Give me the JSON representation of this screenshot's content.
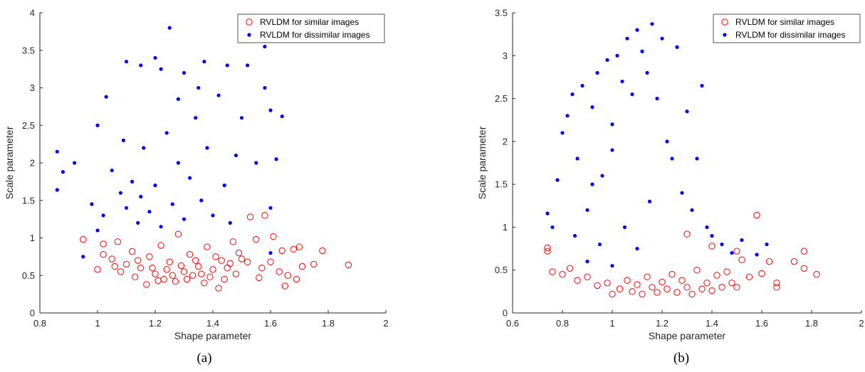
{
  "chart_data": [
    {
      "type": "scatter",
      "caption": "(a)",
      "xlabel": "Shape parameter",
      "ylabel": "Scale parameter",
      "xlim": [
        0.8,
        2
      ],
      "ylim": [
        0,
        4
      ],
      "xticks": [
        "0.8",
        "1",
        "1.2",
        "1.4",
        "1.6",
        "1.8",
        "2"
      ],
      "yticks": [
        "0",
        "0.5",
        "1",
        "1.5",
        "2",
        "2.5",
        "3",
        "3.5",
        "4"
      ],
      "grid": false,
      "legend_position": "top-right",
      "series": [
        {
          "name": "RVLDM for similar images",
          "marker": "open-circle",
          "color": "#ff0000",
          "points": [
            [
              0.95,
              0.98
            ],
            [
              1.0,
              0.58
            ],
            [
              1.02,
              0.78
            ],
            [
              1.05,
              0.72
            ],
            [
              1.07,
              0.95
            ],
            [
              1.08,
              0.55
            ],
            [
              1.1,
              0.65
            ],
            [
              1.12,
              0.82
            ],
            [
              1.13,
              0.48
            ],
            [
              1.15,
              0.6
            ],
            [
              1.17,
              0.38
            ],
            [
              1.18,
              0.75
            ],
            [
              1.2,
              0.52
            ],
            [
              1.22,
              0.9
            ],
            [
              1.23,
              0.45
            ],
            [
              1.25,
              0.68
            ],
            [
              1.27,
              0.42
            ],
            [
              1.28,
              1.05
            ],
            [
              1.3,
              0.55
            ],
            [
              1.32,
              0.78
            ],
            [
              1.33,
              0.5
            ],
            [
              1.35,
              0.62
            ],
            [
              1.37,
              0.4
            ],
            [
              1.38,
              0.88
            ],
            [
              1.4,
              0.58
            ],
            [
              1.42,
              0.33
            ],
            [
              1.43,
              0.7
            ],
            [
              1.45,
              0.6
            ],
            [
              1.47,
              0.95
            ],
            [
              1.48,
              0.52
            ],
            [
              1.5,
              0.72
            ],
            [
              1.52,
              0.68
            ],
            [
              1.53,
              1.28
            ],
            [
              1.55,
              0.98
            ],
            [
              1.57,
              0.6
            ],
            [
              1.58,
              1.3
            ],
            [
              1.6,
              0.68
            ],
            [
              1.61,
              1.02
            ],
            [
              1.64,
              0.83
            ],
            [
              1.65,
              0.36
            ],
            [
              1.66,
              0.5
            ],
            [
              1.68,
              0.85
            ],
            [
              1.7,
              0.88
            ],
            [
              1.71,
              0.62
            ],
            [
              1.75,
              0.65
            ],
            [
              1.78,
              0.83
            ],
            [
              1.87,
              0.64
            ],
            [
              1.02,
              0.92
            ],
            [
              1.06,
              0.62
            ],
            [
              1.14,
              0.7
            ],
            [
              1.19,
              0.6
            ],
            [
              1.21,
              0.43
            ],
            [
              1.24,
              0.58
            ],
            [
              1.26,
              0.5
            ],
            [
              1.29,
              0.63
            ],
            [
              1.31,
              0.45
            ],
            [
              1.34,
              0.7
            ],
            [
              1.36,
              0.52
            ],
            [
              1.39,
              0.48
            ],
            [
              1.41,
              0.75
            ],
            [
              1.44,
              0.45
            ],
            [
              1.46,
              0.66
            ],
            [
              1.49,
              0.8
            ],
            [
              1.56,
              0.47
            ],
            [
              1.63,
              0.55
            ],
            [
              1.69,
              0.45
            ]
          ]
        },
        {
          "name": "RVLDM for dissimilar images",
          "marker": "filled-dot",
          "color": "#0000ff",
          "points": [
            [
              0.86,
              2.15
            ],
            [
              0.86,
              1.64
            ],
            [
              0.88,
              1.88
            ],
            [
              0.92,
              2.0
            ],
            [
              0.95,
              0.75
            ],
            [
              1.0,
              2.5
            ],
            [
              1.03,
              2.88
            ],
            [
              1.1,
              3.35
            ],
            [
              1.15,
              3.3
            ],
            [
              1.2,
              3.4
            ],
            [
              1.22,
              3.25
            ],
            [
              1.25,
              3.8
            ],
            [
              1.3,
              3.2
            ],
            [
              1.37,
              3.35
            ],
            [
              1.45,
              3.3
            ],
            [
              1.52,
              3.3
            ],
            [
              1.58,
              3.55
            ],
            [
              1.58,
              3.0
            ],
            [
              1.6,
              2.7
            ],
            [
              1.64,
              2.62
            ],
            [
              1.62,
              2.05
            ],
            [
              1.6,
              1.4
            ],
            [
              1.6,
              0.8
            ],
            [
              1.55,
              2.0
            ],
            [
              1.5,
              2.6
            ],
            [
              1.48,
              2.1
            ],
            [
              1.05,
              1.9
            ],
            [
              1.08,
              1.6
            ],
            [
              1.1,
              1.4
            ],
            [
              1.12,
              1.75
            ],
            [
              1.14,
              1.2
            ],
            [
              1.15,
              1.55
            ],
            [
              1.16,
              2.2
            ],
            [
              1.18,
              1.35
            ],
            [
              1.2,
              1.7
            ],
            [
              1.22,
              1.15
            ],
            [
              1.24,
              2.4
            ],
            [
              1.26,
              1.45
            ],
            [
              1.28,
              2.0
            ],
            [
              1.3,
              1.25
            ],
            [
              1.32,
              1.8
            ],
            [
              1.34,
              2.6
            ],
            [
              1.36,
              1.5
            ],
            [
              1.38,
              2.2
            ],
            [
              1.4,
              1.3
            ],
            [
              1.42,
              2.9
            ],
            [
              1.44,
              1.7
            ],
            [
              1.46,
              1.2
            ],
            [
              1.35,
              3.0
            ],
            [
              1.28,
              2.85
            ],
            [
              1.02,
              1.3
            ],
            [
              0.98,
              1.45
            ],
            [
              1.0,
              1.1
            ],
            [
              1.09,
              2.3
            ]
          ]
        }
      ]
    },
    {
      "type": "scatter",
      "caption": "(b)",
      "xlabel": "Shape parameter",
      "ylabel": "Scale parameter",
      "xlim": [
        0.6,
        2
      ],
      "ylim": [
        0,
        3.5
      ],
      "xticks": [
        "0.6",
        "0.8",
        "1",
        "1.2",
        "1.4",
        "1.6",
        "1.8",
        "2"
      ],
      "yticks": [
        "0",
        "0.5",
        "1",
        "1.5",
        "2",
        "2.5",
        "3",
        "3.5"
      ],
      "grid": false,
      "legend_position": "top-right",
      "series": [
        {
          "name": "RVLDM for similar images",
          "marker": "open-circle",
          "color": "#ff0000",
          "points": [
            [
              0.74,
              0.76
            ],
            [
              0.74,
              0.72
            ],
            [
              0.76,
              0.48
            ],
            [
              0.8,
              0.45
            ],
            [
              0.83,
              0.52
            ],
            [
              0.86,
              0.38
            ],
            [
              0.9,
              0.42
            ],
            [
              0.94,
              0.32
            ],
            [
              0.98,
              0.35
            ],
            [
              1.0,
              0.22
            ],
            [
              1.03,
              0.28
            ],
            [
              1.06,
              0.38
            ],
            [
              1.08,
              0.25
            ],
            [
              1.1,
              0.33
            ],
            [
              1.12,
              0.22
            ],
            [
              1.14,
              0.42
            ],
            [
              1.16,
              0.3
            ],
            [
              1.18,
              0.24
            ],
            [
              1.2,
              0.36
            ],
            [
              1.22,
              0.28
            ],
            [
              1.24,
              0.45
            ],
            [
              1.26,
              0.24
            ],
            [
              1.28,
              0.38
            ],
            [
              1.3,
              0.3
            ],
            [
              1.32,
              0.22
            ],
            [
              1.34,
              0.5
            ],
            [
              1.36,
              0.28
            ],
            [
              1.38,
              0.35
            ],
            [
              1.4,
              0.26
            ],
            [
              1.42,
              0.44
            ],
            [
              1.44,
              0.3
            ],
            [
              1.46,
              0.48
            ],
            [
              1.48,
              0.35
            ],
            [
              1.5,
              0.3
            ],
            [
              1.52,
              0.62
            ],
            [
              1.55,
              0.42
            ],
            [
              1.58,
              1.14
            ],
            [
              1.6,
              0.46
            ],
            [
              1.63,
              0.6
            ],
            [
              1.66,
              0.35
            ],
            [
              1.66,
              0.3
            ],
            [
              1.73,
              0.6
            ],
            [
              1.77,
              0.72
            ],
            [
              1.77,
              0.52
            ],
            [
              1.82,
              0.45
            ],
            [
              1.3,
              0.92
            ],
            [
              1.4,
              0.78
            ],
            [
              1.5,
              0.72
            ]
          ]
        },
        {
          "name": "RVLDM for dissimilar images",
          "marker": "filled-dot",
          "color": "#0000ff",
          "points": [
            [
              0.74,
              1.16
            ],
            [
              0.76,
              1.0
            ],
            [
              0.78,
              1.55
            ],
            [
              0.8,
              2.1
            ],
            [
              0.82,
              2.3
            ],
            [
              0.84,
              2.55
            ],
            [
              0.86,
              1.8
            ],
            [
              0.88,
              2.65
            ],
            [
              0.9,
              1.2
            ],
            [
              0.92,
              2.4
            ],
            [
              0.94,
              2.8
            ],
            [
              0.96,
              1.6
            ],
            [
              0.98,
              2.95
            ],
            [
              1.0,
              2.2
            ],
            [
              1.02,
              3.0
            ],
            [
              1.04,
              2.7
            ],
            [
              1.06,
              3.2
            ],
            [
              1.08,
              2.55
            ],
            [
              1.1,
              3.3
            ],
            [
              1.12,
              3.05
            ],
            [
              1.14,
              2.8
            ],
            [
              1.16,
              3.37
            ],
            [
              1.18,
              2.5
            ],
            [
              1.2,
              3.2
            ],
            [
              1.22,
              2.0
            ],
            [
              1.24,
              1.8
            ],
            [
              1.26,
              3.1
            ],
            [
              1.28,
              1.4
            ],
            [
              1.3,
              2.35
            ],
            [
              1.32,
              1.2
            ],
            [
              1.34,
              1.8
            ],
            [
              1.36,
              2.65
            ],
            [
              1.38,
              1.0
            ],
            [
              1.4,
              0.9
            ],
            [
              1.44,
              0.8
            ],
            [
              1.48,
              0.7
            ],
            [
              1.52,
              0.85
            ],
            [
              1.58,
              0.68
            ],
            [
              1.62,
              0.8
            ],
            [
              0.9,
              0.6
            ],
            [
              0.95,
              0.8
            ],
            [
              1.0,
              0.55
            ],
            [
              1.05,
              1.0
            ],
            [
              1.1,
              0.75
            ],
            [
              1.15,
              1.3
            ],
            [
              0.85,
              0.9
            ],
            [
              0.92,
              1.5
            ],
            [
              1.0,
              1.9
            ]
          ]
        }
      ]
    }
  ]
}
